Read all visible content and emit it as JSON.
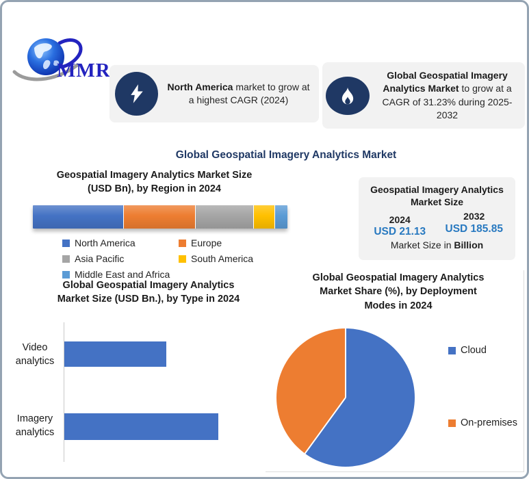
{
  "page": {
    "background": "#FFFFFF",
    "border_color": "#94A3B2"
  },
  "logo": {
    "text": "MMR",
    "text_color": "#2323BF"
  },
  "callouts": [
    {
      "icon": "lightning-icon",
      "bold": "North America",
      "rest": " market to grow at a highest CAGR (2024)"
    },
    {
      "icon": "flame-icon",
      "bold": "Global Geospatial Imagery Analytics Market",
      "rest": " to grow at a CAGR of 31.23% during 2025-2032"
    }
  ],
  "main_title": "Global Geospatial Imagery Analytics Market",
  "market_size_panel": {
    "title_lines": [
      "Geospatial Imagery Analytics",
      "Market Size"
    ],
    "years": [
      "2024",
      "2032"
    ],
    "values": [
      "USD 21.13",
      "USD 185.85"
    ],
    "footnote_prefix": "Market Size in ",
    "footnote_bold": "Billion",
    "value_color": "#2879C0"
  },
  "chart_data": [
    {
      "id": "region-stacked-bar",
      "type": "bar",
      "subtype": "stacked-horizontal-single-bar",
      "title": "Geospatial Imagery Analytics Market Size (USD Bn), by Region in 2024",
      "title_lines": [
        "Geospatial Imagery Analytics Market Size",
        "(USD Bn), by Region in 2024"
      ],
      "unit": "share of bar length (%), estimated from segment widths",
      "series": [
        {
          "name": "North America",
          "value": 36,
          "color": "#4472C4"
        },
        {
          "name": "Europe",
          "value": 28,
          "color": "#ED7D31"
        },
        {
          "name": "Asia Pacific",
          "value": 23,
          "color": "#A5A5A5"
        },
        {
          "name": "South America",
          "value": 8,
          "color": "#FFC000"
        },
        {
          "name": "Middle East and Africa",
          "value": 5,
          "color": "#5B9BD5"
        }
      ],
      "legend_position": "bottom"
    },
    {
      "id": "type-bar",
      "type": "bar",
      "subtype": "horizontal",
      "title": "Global Geospatial Imagery Analytics Market Size (USD Bn.), by Type in 2024",
      "title_lines": [
        "Global Geospatial Imagery Analytics",
        "Market Size (USD Bn.), by Type in 2024"
      ],
      "categories": [
        "Video analytics",
        "Imagery analytics"
      ],
      "values": [
        8.4,
        12.7
      ],
      "xlim": [
        0,
        18.6
      ],
      "bar_color": "#4472C4",
      "grid": false,
      "xlabel": "",
      "ylabel": ""
    },
    {
      "id": "deployment-pie",
      "type": "pie",
      "title": "Global Geospatial Imagery Analytics Market Share (%), by Deployment Modes in 2024",
      "title_lines": [
        "Global Geospatial Imagery Analytics",
        "Market Share (%), by Deployment",
        "Modes in 2024"
      ],
      "start_angle_deg": 0,
      "direction": "clockwise",
      "legend_position": "right",
      "slices": [
        {
          "name": "Cloud",
          "value": 60,
          "color": "#4472C4"
        },
        {
          "name": "On-premises",
          "value": 40,
          "color": "#ED7D31"
        }
      ]
    }
  ]
}
